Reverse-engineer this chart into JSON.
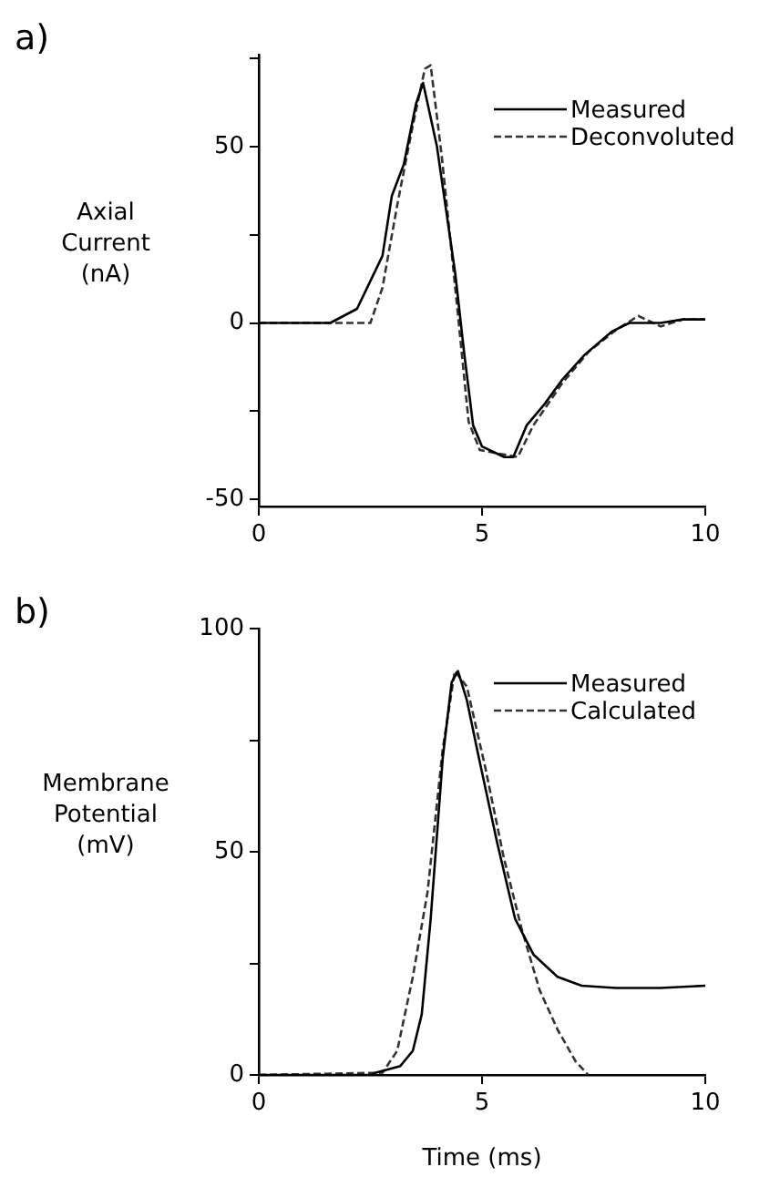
{
  "chart_data": [
    {
      "type": "line",
      "ylabel": "Axial\nCurrent\n(nA)",
      "annotations": [
        "a)"
      ],
      "xlim": [
        0,
        10
      ],
      "xticks": [
        0,
        5,
        10
      ],
      "ylim": [
        -52,
        76
      ],
      "yticks": [
        -50,
        {
          "value": -25,
          "label": null
        },
        0,
        {
          "value": 25,
          "label": null
        },
        50,
        {
          "value": 75,
          "label": null
        }
      ],
      "grid": false,
      "legend": "top right",
      "marker": "none",
      "series": [
        {
          "name": "Measured",
          "color": "#000000",
          "line_style": "solid",
          "x": [
            0,
            1.6,
            2.2,
            2.77,
            2.98,
            3.25,
            3.52,
            3.68,
            3.99,
            4.4,
            4.6,
            4.8,
            5.0,
            5.5,
            5.7,
            6.0,
            6.4,
            6.8,
            7.3,
            7.9,
            8.3,
            9,
            9.5,
            10
          ],
          "values": [
            0,
            0,
            4,
            19,
            36,
            45,
            62,
            68,
            50,
            14,
            -8.5,
            -29,
            -35,
            -38,
            -38,
            -29,
            -23,
            -16,
            -9,
            -2.5,
            0,
            0,
            1,
            1
          ]
        },
        {
          "name": "Deconvoluted",
          "color": "#333333",
          "line_style": "dashed",
          "x": [
            0,
            2.5,
            2.77,
            3.11,
            3.45,
            3.72,
            3.85,
            4.1,
            4.4,
            4.7,
            4.95,
            5.8,
            6.15,
            6.8,
            7.4,
            8,
            8.5,
            9,
            9.5,
            10
          ],
          "values": [
            0,
            0,
            10,
            34,
            56,
            72,
            73,
            47,
            10,
            -28,
            -36,
            -38,
            -29,
            -17,
            -8,
            -2,
            2,
            -1,
            1,
            1
          ]
        }
      ]
    },
    {
      "type": "line",
      "ylabel": "Membrane\nPotential\n(mV)",
      "xlabel": "Time (ms)",
      "annotations": [
        "b)"
      ],
      "xlim": [
        0,
        10
      ],
      "xticks": [
        0,
        5,
        10
      ],
      "ylim": [
        0,
        100
      ],
      "yticks": [
        0,
        {
          "value": 25,
          "label": null
        },
        50,
        {
          "value": 75,
          "label": null
        },
        100
      ],
      "grid": false,
      "legend": "top right",
      "marker": "none",
      "series": [
        {
          "name": "Measured",
          "color": "#000000",
          "line_style": "solid",
          "x": [
            0,
            2.5,
            2.62,
            3.17,
            3.45,
            3.65,
            3.85,
            4.12,
            4.32,
            4.46,
            4.66,
            4.93,
            5.34,
            5.74,
            6.15,
            6.69,
            7.23,
            8,
            9,
            10
          ],
          "values": [
            0,
            0,
            0.5,
            2,
            5.4,
            13.6,
            35,
            71,
            88,
            90.5,
            84,
            71,
            52,
            35,
            27,
            22,
            20,
            19.5,
            19.5,
            20
          ]
        },
        {
          "name": "Calculated",
          "color": "#333333",
          "line_style": "dashed",
          "x": [
            0,
            2.77,
            3.1,
            3.45,
            3.78,
            4.12,
            4.39,
            4.66,
            5.07,
            5.48,
            5.88,
            6.29,
            6.7,
            7.1,
            7.38
          ],
          "values": [
            0,
            0.5,
            5.4,
            22,
            41,
            73,
            90.5,
            87,
            69,
            49,
            33,
            19,
            10,
            3,
            0
          ]
        }
      ]
    }
  ]
}
